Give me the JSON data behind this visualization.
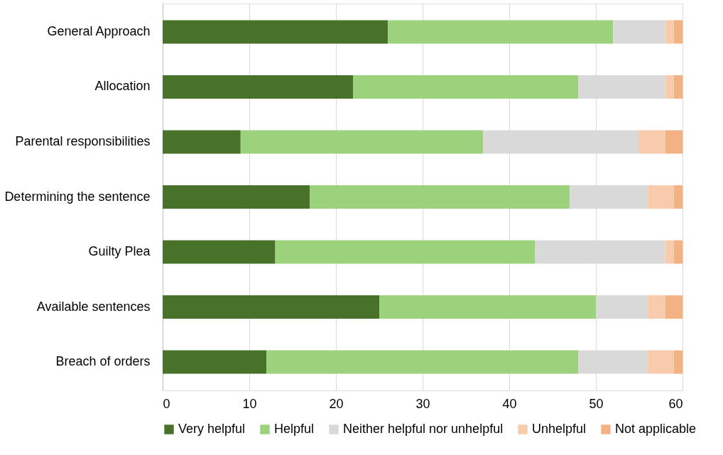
{
  "chart_data": {
    "type": "bar",
    "orientation": "horizontal",
    "stacked": true,
    "categories": [
      "General Approach",
      "Allocation",
      "Parental responsibilities",
      "Determining the sentence",
      "Guilty Plea",
      "Available sentences",
      "Breach of orders"
    ],
    "series": [
      {
        "name": "Very helpful",
        "color": "#48722a",
        "values": [
          26,
          22,
          9,
          17,
          13,
          25,
          12
        ]
      },
      {
        "name": "Helpful",
        "color": "#9bd27b",
        "values": [
          26,
          26,
          28,
          30,
          30,
          25,
          36
        ]
      },
      {
        "name": "Neither helpful nor unhelpful",
        "color": "#d9d9d9",
        "values": [
          6,
          10,
          18,
          9,
          15,
          6,
          8
        ]
      },
      {
        "name": "Unhelpful",
        "color": "#f8cbad",
        "values": [
          1,
          1,
          3,
          3,
          1,
          2,
          3
        ]
      },
      {
        "name": "Not applicable",
        "color": "#f4b183",
        "values": [
          1,
          1,
          2,
          1,
          1,
          2,
          1
        ]
      }
    ],
    "xlim": [
      0,
      60
    ],
    "xticks": [
      0,
      10,
      20,
      30,
      40,
      50,
      60
    ],
    "grid": "x",
    "legend": "bottom"
  }
}
